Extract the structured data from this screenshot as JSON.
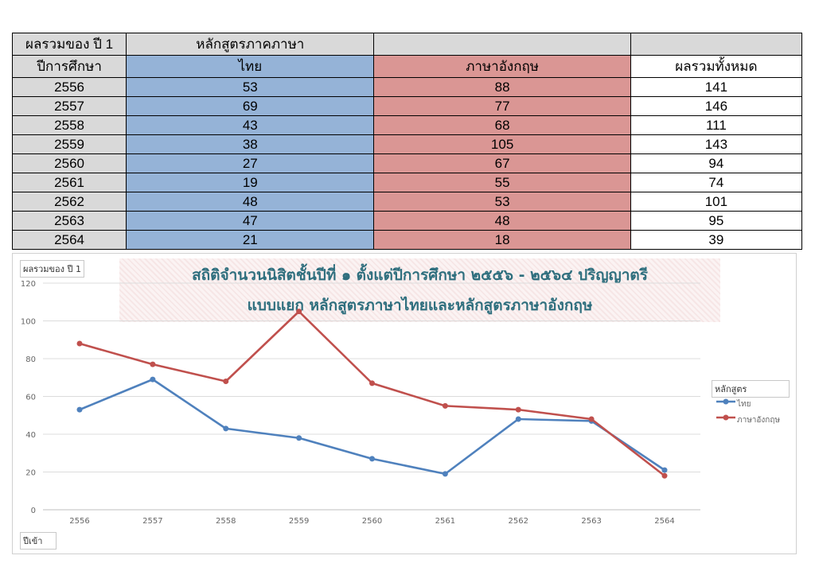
{
  "table": {
    "corner_label": "ผลรวมของ ปี 1",
    "group_label": "หลักสูตรภาคภาษา",
    "row_header_label": "ปีการศึกษา",
    "col_thai": "ไทย",
    "col_english": "ภาษาอังกฤษ",
    "col_total": "ผลรวมทั้งหมด",
    "rows": [
      {
        "year": "2556",
        "thai": "53",
        "english": "88",
        "total": "141"
      },
      {
        "year": "2557",
        "thai": "69",
        "english": "77",
        "total": "146"
      },
      {
        "year": "2558",
        "thai": "43",
        "english": "68",
        "total": "111"
      },
      {
        "year": "2559",
        "thai": "38",
        "english": "105",
        "total": "143"
      },
      {
        "year": "2560",
        "thai": "27",
        "english": "67",
        "total": "94"
      },
      {
        "year": "2561",
        "thai": "19",
        "english": "55",
        "total": "74"
      },
      {
        "year": "2562",
        "thai": "48",
        "english": "53",
        "total": "101"
      },
      {
        "year": "2563",
        "thai": "47",
        "english": "48",
        "total": "95"
      },
      {
        "year": "2564",
        "thai": "21",
        "english": "18",
        "total": "39"
      }
    ]
  },
  "chart": {
    "value_field_button": "ผลรวมของ ปี 1",
    "axis_field_button": "ปีเข้า",
    "legend_title": "หลักสูตร",
    "title_line1": "สถิติจำนวนนิสิตชั้นปีที่ ๑ ตั้งแต่ปีการศึกษา ๒๕๕๖ - ๒๕๖๔ ปริญญาตรี",
    "title_line2": "แบบแยก หลักสูตรภาษาไทยและหลักสูตรภาษาอังกฤษ"
  },
  "chart_data": {
    "type": "line",
    "title": "สถิติจำนวนนิสิตชั้นปีที่ ๑ ตั้งแต่ปีการศึกษา ๒๕๕๖ - ๒๕๖๔ ปริญญาตรี แบบแยก หลักสูตรภาษาไทยและหลักสูตรภาษาอังกฤษ",
    "categories": [
      "2556",
      "2557",
      "2558",
      "2559",
      "2560",
      "2561",
      "2562",
      "2563",
      "2564"
    ],
    "series": [
      {
        "name": "ไทย",
        "values": [
          53,
          69,
          43,
          38,
          27,
          19,
          48,
          47,
          21
        ],
        "color": "#4f81bd"
      },
      {
        "name": "ภาษาอังกฤษ",
        "values": [
          88,
          77,
          68,
          105,
          67,
          55,
          53,
          48,
          18
        ],
        "color": "#c0504d"
      }
    ],
    "ylim": [
      0,
      120
    ],
    "yticks": [
      0,
      20,
      40,
      60,
      80,
      100,
      120
    ],
    "grid": true,
    "legend_position": "right"
  }
}
